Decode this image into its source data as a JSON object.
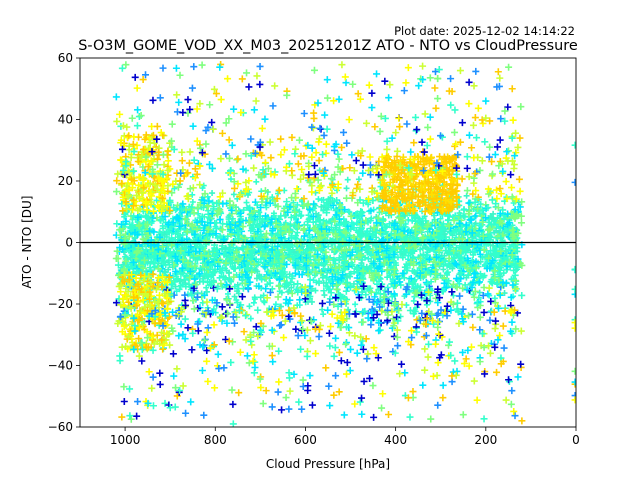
{
  "chart_data": {
    "type": "scatter",
    "title": "S-O3M_GOME_VOD_XX_M03_20251201Z ATO - NTO vs CloudPressure",
    "plot_date": "Plot date: 2025-12-02 14:14:22",
    "xlabel": "Cloud Pressure [hPa]",
    "ylabel": "ATO - NTO [DU]",
    "xlim": [
      1100,
      0
    ],
    "ylim": [
      -60,
      60
    ],
    "xticks": [
      1000,
      800,
      600,
      400,
      200,
      0
    ],
    "xtick_labels": [
      "1000",
      "800",
      "600",
      "400",
      "200",
      "0"
    ],
    "yticks": [
      60,
      40,
      20,
      0,
      -20,
      -40,
      -60
    ],
    "ytick_labels": [
      "60",
      "40",
      "20",
      "0",
      "−20",
      "−40",
      "−60"
    ],
    "reference_line_y": 0,
    "marker": "+",
    "colormap": [
      "#0000cd",
      "#1e90ff",
      "#00e5ff",
      "#33ffcc",
      "#7fff7f",
      "#ccff33",
      "#ffff00",
      "#ffcc00"
    ],
    "point_cloud": {
      "x_range": [
        120,
        1020
      ],
      "y_core_range": [
        -25,
        25
      ],
      "y_outlier_range": [
        -60,
        58
      ],
      "dense_colors": [
        "#33ffcc",
        "#33ffcc",
        "#2effd9",
        "#3cf5c8"
      ]
    },
    "sample_points": [
      {
        "x": 960,
        "y": 53,
        "c": "#ffcc00"
      },
      {
        "x": 790,
        "y": 57,
        "c": "#00e5ff"
      },
      {
        "x": 580,
        "y": 56,
        "c": "#7fff7f"
      },
      {
        "x": 340,
        "y": 53,
        "c": "#00e5ff"
      },
      {
        "x": 200,
        "y": 46,
        "c": "#00e5ff"
      },
      {
        "x": 120,
        "y": -58,
        "c": "#ffcc00"
      },
      {
        "x": 760,
        "y": -59,
        "c": "#33ffcc"
      },
      {
        "x": 250,
        "y": -56,
        "c": "#7fff7f"
      }
    ]
  }
}
